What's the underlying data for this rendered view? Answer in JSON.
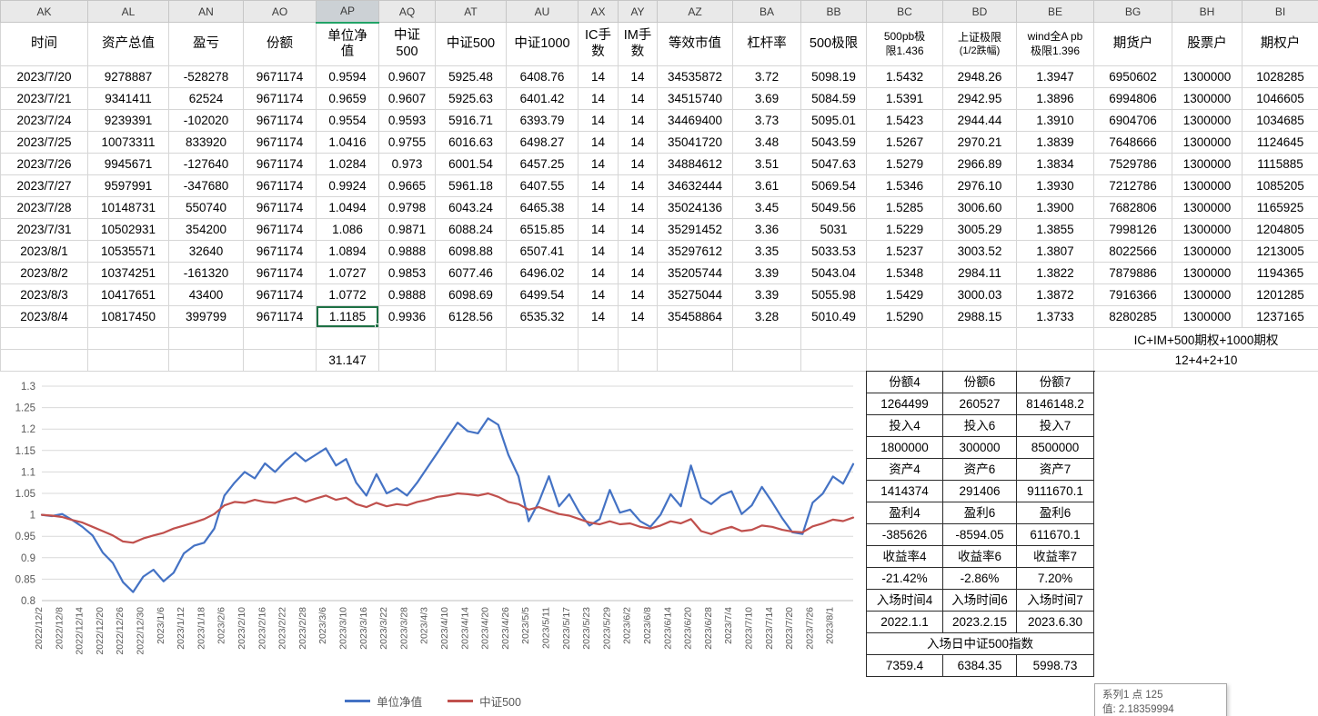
{
  "selection": {
    "column_letter": "AP",
    "row_index": 11,
    "col_index": 4,
    "value": "1.1185"
  },
  "colors": {
    "series1": "#4472c4",
    "series2": "#c0504d",
    "selection_green": "#1e7145",
    "header_bg": "#e9e9e9",
    "grid_line": "#d6d6d6",
    "panel_border": "#2b2b2b"
  },
  "table": {
    "columns": [
      {
        "letter": "AK",
        "width": 96,
        "header_lines": [
          "时间"
        ]
      },
      {
        "letter": "AL",
        "width": 89,
        "header_lines": [
          "资产总值"
        ]
      },
      {
        "letter": "AN",
        "width": 82,
        "header_lines": [
          "盈亏"
        ]
      },
      {
        "letter": "AO",
        "width": 80,
        "header_lines": [
          "份额"
        ]
      },
      {
        "letter": "AP",
        "width": 69,
        "header_lines": [
          "单位净",
          "值"
        ]
      },
      {
        "letter": "AQ",
        "width": 62,
        "header_lines": [
          "中证",
          "500"
        ]
      },
      {
        "letter": "AT",
        "width": 78,
        "header_lines": [
          "中证500"
        ]
      },
      {
        "letter": "AU",
        "width": 79,
        "header_lines": [
          "中证1000"
        ]
      },
      {
        "letter": "AX",
        "width": 44,
        "header_lines": [
          "IC手",
          "数"
        ]
      },
      {
        "letter": "AY",
        "width": 43,
        "header_lines": [
          "IM手",
          "数"
        ]
      },
      {
        "letter": "AZ",
        "width": 83,
        "header_lines": [
          "等效市值"
        ]
      },
      {
        "letter": "BA",
        "width": 75,
        "header_lines": [
          "杠杆率"
        ]
      },
      {
        "letter": "BB",
        "width": 72,
        "header_lines": [
          "500极限"
        ]
      },
      {
        "letter": "BC",
        "width": 84,
        "small": true,
        "header_lines": [
          "500pb极",
          "限1.436"
        ]
      },
      {
        "letter": "BD",
        "width": 81,
        "small": true,
        "line2_small": true,
        "header_lines": [
          "上证极限",
          "(1/2跌幅)"
        ]
      },
      {
        "letter": "BE",
        "width": 85,
        "small": true,
        "header_lines": [
          "wind全A pb",
          "极限1.396"
        ]
      },
      {
        "letter": "BG",
        "width": 86,
        "header_lines": [
          "期货户"
        ]
      },
      {
        "letter": "BH",
        "width": 77,
        "header_lines": [
          "股票户"
        ]
      },
      {
        "letter": "BI",
        "width": 84,
        "header_lines": [
          "期权户"
        ]
      }
    ],
    "rows": [
      [
        "2023/7/20",
        "9278887",
        "-528278",
        "9671174",
        "0.9594",
        "0.9607",
        "5925.48",
        "6408.76",
        "14",
        "14",
        "34535872",
        "3.72",
        "5098.19",
        "1.5432",
        "2948.26",
        "1.3947",
        "6950602",
        "1300000",
        "1028285"
      ],
      [
        "2023/7/21",
        "9341411",
        "62524",
        "9671174",
        "0.9659",
        "0.9607",
        "5925.63",
        "6401.42",
        "14",
        "14",
        "34515740",
        "3.69",
        "5084.59",
        "1.5391",
        "2942.95",
        "1.3896",
        "6994806",
        "1300000",
        "1046605"
      ],
      [
        "2023/7/24",
        "9239391",
        "-102020",
        "9671174",
        "0.9554",
        "0.9593",
        "5916.71",
        "6393.79",
        "14",
        "14",
        "34469400",
        "3.73",
        "5095.01",
        "1.5423",
        "2944.44",
        "1.3910",
        "6904706",
        "1300000",
        "1034685"
      ],
      [
        "2023/7/25",
        "10073311",
        "833920",
        "9671174",
        "1.0416",
        "0.9755",
        "6016.63",
        "6498.27",
        "14",
        "14",
        "35041720",
        "3.48",
        "5043.59",
        "1.5267",
        "2970.21",
        "1.3839",
        "7648666",
        "1300000",
        "1124645"
      ],
      [
        "2023/7/26",
        "9945671",
        "-127640",
        "9671174",
        "1.0284",
        "0.973",
        "6001.54",
        "6457.25",
        "14",
        "14",
        "34884612",
        "3.51",
        "5047.63",
        "1.5279",
        "2966.89",
        "1.3834",
        "7529786",
        "1300000",
        "1115885"
      ],
      [
        "2023/7/27",
        "9597991",
        "-347680",
        "9671174",
        "0.9924",
        "0.9665",
        "5961.18",
        "6407.55",
        "14",
        "14",
        "34632444",
        "3.61",
        "5069.54",
        "1.5346",
        "2976.10",
        "1.3930",
        "7212786",
        "1300000",
        "1085205"
      ],
      [
        "2023/7/28",
        "10148731",
        "550740",
        "9671174",
        "1.0494",
        "0.9798",
        "6043.24",
        "6465.38",
        "14",
        "14",
        "35024136",
        "3.45",
        "5049.56",
        "1.5285",
        "3006.60",
        "1.3900",
        "7682806",
        "1300000",
        "1165925"
      ],
      [
        "2023/7/31",
        "10502931",
        "354200",
        "9671174",
        "1.086",
        "0.9871",
        "6088.24",
        "6515.85",
        "14",
        "14",
        "35291452",
        "3.36",
        "5031",
        "1.5229",
        "3005.29",
        "1.3855",
        "7998126",
        "1300000",
        "1204805"
      ],
      [
        "2023/8/1",
        "10535571",
        "32640",
        "9671174",
        "1.0894",
        "0.9888",
        "6098.88",
        "6507.41",
        "14",
        "14",
        "35297612",
        "3.35",
        "5033.53",
        "1.5237",
        "3003.52",
        "1.3807",
        "8022566",
        "1300000",
        "1213005"
      ],
      [
        "2023/8/2",
        "10374251",
        "-161320",
        "9671174",
        "1.0727",
        "0.9853",
        "6077.46",
        "6496.02",
        "14",
        "14",
        "35205744",
        "3.39",
        "5043.04",
        "1.5348",
        "2984.11",
        "1.3822",
        "7879886",
        "1300000",
        "1194365"
      ],
      [
        "2023/8/3",
        "10417651",
        "43400",
        "9671174",
        "1.0772",
        "0.9888",
        "6098.69",
        "6499.54",
        "14",
        "14",
        "35275044",
        "3.39",
        "5055.98",
        "1.5429",
        "3000.03",
        "1.3872",
        "7916366",
        "1300000",
        "1201285"
      ],
      [
        "2023/8/4",
        "10817450",
        "399799",
        "9671174",
        "1.1185",
        "0.9936",
        "6128.56",
        "6535.32",
        "14",
        "14",
        "35458864",
        "3.28",
        "5010.49",
        "1.5290",
        "2988.15",
        "1.3733",
        "8280285",
        "1300000",
        "1237165"
      ]
    ]
  },
  "footer": {
    "ap_total": "31.147",
    "note_line1": "IC+IM+500期权+1000期权",
    "note_line2": "12+4+2+10"
  },
  "side_panel": {
    "rows": [
      {
        "type": "labels",
        "cells": [
          "份额4",
          "份额6",
          "份额7"
        ]
      },
      {
        "type": "values",
        "cells": [
          "1264499",
          "260527",
          "8146148.2"
        ]
      },
      {
        "type": "labels",
        "cells": [
          "投入4",
          "投入6",
          "投入7"
        ]
      },
      {
        "type": "values",
        "cells": [
          "1800000",
          "300000",
          "8500000"
        ]
      },
      {
        "type": "labels",
        "cells": [
          "资产4",
          "资产6",
          "资产7"
        ]
      },
      {
        "type": "values",
        "cells": [
          "1414374",
          "291406",
          "9111670.1"
        ]
      },
      {
        "type": "labels",
        "cells": [
          "盈利4",
          "盈利6",
          "盈利6"
        ]
      },
      {
        "type": "values",
        "cells": [
          "-385626",
          "-8594.05",
          "611670.1"
        ]
      },
      {
        "type": "labels",
        "cells": [
          "收益率4",
          "收益率6",
          "收益率7"
        ]
      },
      {
        "type": "values",
        "cells": [
          "-21.42%",
          "-2.86%",
          "7.20%"
        ]
      },
      {
        "type": "labels",
        "cells": [
          "入场时间4",
          "入场时间6",
          "入场时间7"
        ]
      },
      {
        "type": "values",
        "cells": [
          "2022.1.1",
          "2023.2.15",
          "2023.6.30"
        ]
      },
      {
        "type": "merged",
        "text": "入场日中证500指数"
      },
      {
        "type": "values",
        "cells": [
          "7359.4",
          "6384.35",
          "5998.73"
        ]
      }
    ]
  },
  "tooltip": {
    "line1": "系列1 点 125",
    "line2": "值: 2.18359994"
  },
  "chart_data": {
    "type": "line",
    "title": "",
    "xlabel": "",
    "ylabel": "",
    "ylim": [
      0.8,
      1.3
    ],
    "grid": "horizontal",
    "legend_position": "bottom",
    "tick_step_points": 2,
    "y_ticks": [
      "0.8",
      "0.85",
      "0.9",
      "0.95",
      "1",
      "1.05",
      "1.1",
      "1.15",
      "1.2",
      "1.25",
      "1.3"
    ],
    "x_tick_labels": [
      "2022/12/2",
      "2022/12/8",
      "2022/12/14",
      "2022/12/20",
      "2022/12/26",
      "2022/12/30",
      "2023/1/6",
      "2023/1/12",
      "2023/1/18",
      "2023/2/6",
      "2023/2/10",
      "2023/2/16",
      "2023/2/22",
      "2023/2/28",
      "2023/3/6",
      "2023/3/10",
      "2023/3/16",
      "2023/3/22",
      "2023/3/28",
      "2023/4/3",
      "2023/4/10",
      "2023/4/14",
      "2023/4/20",
      "2023/4/26",
      "2023/5/5",
      "2023/5/11",
      "2023/5/17",
      "2023/5/23",
      "2023/5/29",
      "2023/6/2",
      "2023/6/8",
      "2023/6/14",
      "2023/6/20",
      "2023/6/28",
      "2023/7/4",
      "2023/7/10",
      "2023/7/14",
      "2023/7/20",
      "2023/7/26",
      "2023/8/1"
    ],
    "series": [
      {
        "name": "单位净值",
        "color": "#4472c4",
        "values": [
          1.0,
          0.997,
          1.002,
          0.988,
          0.972,
          0.952,
          0.912,
          0.888,
          0.843,
          0.82,
          0.856,
          0.872,
          0.845,
          0.865,
          0.91,
          0.928,
          0.935,
          0.968,
          1.045,
          1.075,
          1.1,
          1.085,
          1.12,
          1.1,
          1.125,
          1.145,
          1.125,
          1.14,
          1.155,
          1.115,
          1.13,
          1.075,
          1.045,
          1.095,
          1.05,
          1.062,
          1.045,
          1.075,
          1.11,
          1.145,
          1.18,
          1.215,
          1.195,
          1.19,
          1.225,
          1.21,
          1.14,
          1.09,
          0.985,
          1.03,
          1.09,
          1.02,
          1.048,
          1.005,
          0.975,
          0.99,
          1.058,
          1.005,
          1.012,
          0.985,
          0.972,
          1.0,
          1.048,
          1.02,
          1.115,
          1.04,
          1.025,
          1.045,
          1.055,
          1.002,
          1.022,
          1.065,
          1.03,
          0.992,
          0.9594,
          0.9554,
          1.0284,
          1.0494,
          1.0894,
          1.0727,
          1.1185
        ]
      },
      {
        "name": "中证500",
        "color": "#c0504d",
        "values": [
          1.0,
          0.998,
          0.995,
          0.988,
          0.982,
          0.972,
          0.962,
          0.952,
          0.938,
          0.935,
          0.945,
          0.952,
          0.958,
          0.968,
          0.975,
          0.982,
          0.99,
          1.002,
          1.022,
          1.03,
          1.028,
          1.035,
          1.03,
          1.028,
          1.035,
          1.04,
          1.03,
          1.038,
          1.045,
          1.035,
          1.04,
          1.025,
          1.018,
          1.028,
          1.02,
          1.025,
          1.022,
          1.03,
          1.035,
          1.042,
          1.045,
          1.05,
          1.048,
          1.045,
          1.05,
          1.042,
          1.03,
          1.025,
          1.012,
          1.018,
          1.01,
          1.002,
          0.998,
          0.99,
          0.982,
          0.978,
          0.985,
          0.978,
          0.98,
          0.972,
          0.968,
          0.975,
          0.985,
          0.98,
          0.99,
          0.962,
          0.955,
          0.965,
          0.972,
          0.962,
          0.965,
          0.975,
          0.972,
          0.965,
          0.9607,
          0.9593,
          0.973,
          0.9798,
          0.9888,
          0.9853,
          0.9936
        ]
      }
    ]
  }
}
